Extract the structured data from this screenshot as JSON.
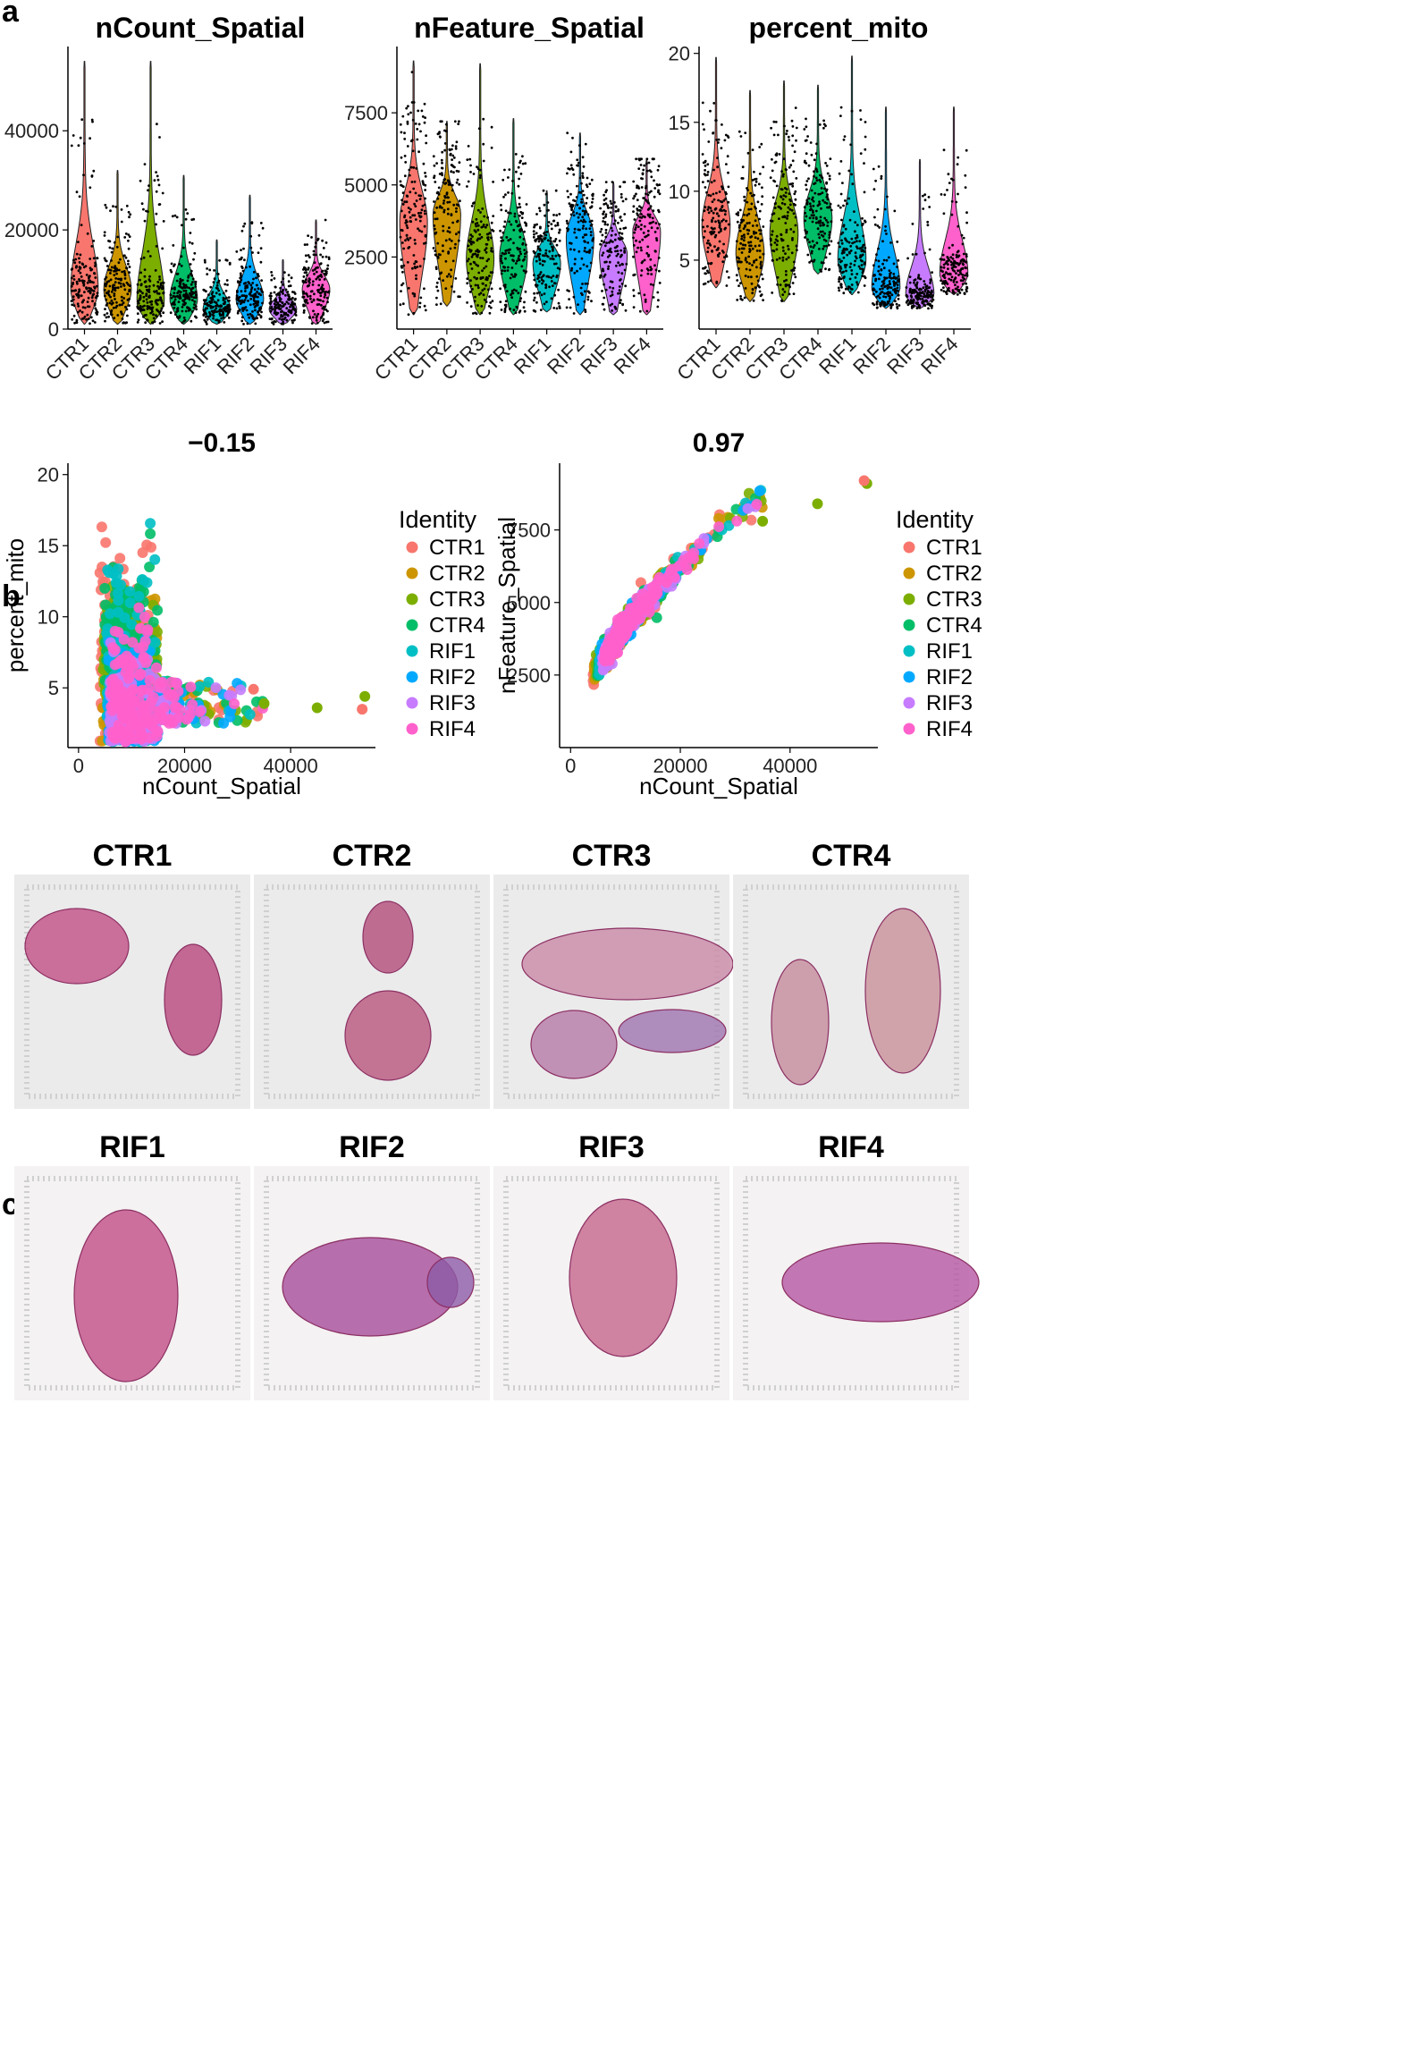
{
  "panel_labels": {
    "a": "a",
    "b": "b",
    "c": "c"
  },
  "colors": {
    "CTR1": "#F8766D",
    "CTR2": "#CD9600",
    "CTR3": "#7CAE00",
    "CTR4": "#00BE67",
    "RIF1": "#00BFC4",
    "RIF2": "#00A9FF",
    "RIF3": "#C77CFF",
    "RIF4": "#FF61CC"
  },
  "groups": [
    "CTR1",
    "CTR2",
    "CTR3",
    "CTR4",
    "RIF1",
    "RIF2",
    "RIF3",
    "RIF4"
  ],
  "chart_data": [
    {
      "type": "violin",
      "title": "nCount_Spatial",
      "categories": [
        "CTR1",
        "CTR2",
        "CTR3",
        "CTR4",
        "RIF1",
        "RIF2",
        "RIF3",
        "RIF4"
      ],
      "ylim": [
        0,
        57000
      ],
      "yticks": [
        0,
        20000,
        40000
      ],
      "medians": [
        8000,
        8000,
        5500,
        6000,
        4000,
        6000,
        4000,
        8000
      ],
      "maxima": [
        54000,
        32000,
        54000,
        31000,
        18000,
        27000,
        14000,
        22000
      ],
      "minima": [
        1000,
        1000,
        1000,
        1000,
        1000,
        1000,
        1000,
        1000
      ]
    },
    {
      "type": "violin",
      "title": "nFeature_Spatial",
      "categories": [
        "CTR1",
        "CTR2",
        "CTR3",
        "CTR4",
        "RIF1",
        "RIF2",
        "RIF3",
        "RIF4"
      ],
      "ylim": [
        0,
        9800
      ],
      "yticks": [
        2500,
        5000,
        7500
      ],
      "medians": [
        3700,
        4000,
        2400,
        2500,
        2300,
        3200,
        2600,
        3400
      ],
      "maxima": [
        9300,
        7200,
        9200,
        7300,
        4800,
        6800,
        5100,
        5900
      ],
      "minima": [
        500,
        800,
        500,
        500,
        600,
        500,
        500,
        500
      ]
    },
    {
      "type": "violin",
      "title": "percent_mito",
      "categories": [
        "CTR1",
        "CTR2",
        "CTR3",
        "CTR4",
        "RIF1",
        "RIF2",
        "RIF3",
        "RIF4"
      ],
      "ylim": [
        0,
        20.5
      ],
      "yticks": [
        5,
        10,
        15,
        20
      ],
      "medians": [
        7.5,
        5.5,
        7,
        8,
        5,
        3,
        2.5,
        4
      ],
      "maxima": [
        19.7,
        17.3,
        18,
        17.7,
        19.8,
        16.1,
        12.3,
        16.1
      ],
      "minima": [
        3,
        2,
        2,
        4,
        2.5,
        1.5,
        1.5,
        2.5
      ]
    },
    {
      "type": "scatter",
      "title": "−0.15",
      "xlabel": "nCount_Spatial",
      "ylabel": "percent_mito",
      "xlim": [
        -2000,
        56000
      ],
      "ylim": [
        0.8,
        20.8
      ],
      "xticks": [
        0,
        20000,
        40000
      ],
      "yticks": [
        5,
        10,
        15,
        20
      ],
      "legend_title": "Identity",
      "correlation": -0.15
    },
    {
      "type": "scatter",
      "title": "0.97",
      "xlabel": "nCount_Spatial",
      "ylabel": "nFeature_Spatial",
      "xlim": [
        -2000,
        56000
      ],
      "ylim": [
        0,
        9800
      ],
      "xticks": [
        0,
        20000,
        40000
      ],
      "yticks": [
        2500,
        5000,
        7500
      ],
      "legend_title": "Identity",
      "correlation": 0.97
    }
  ],
  "tissue_titles": [
    "CTR1",
    "CTR2",
    "CTR3",
    "CTR4",
    "RIF1",
    "RIF2",
    "RIF3",
    "RIF4"
  ]
}
